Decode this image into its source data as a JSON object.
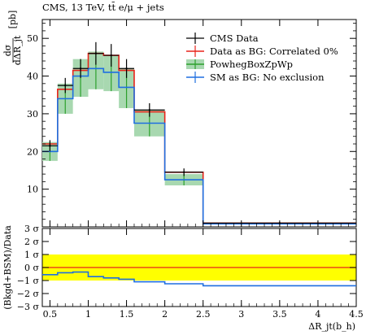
{
  "chart_data": [
    {
      "type": "line",
      "title": "CMS, 13 TeV, tt̄ e/μ + jets",
      "ylabel_num": "dσ",
      "ylabel_den": "dΔR_jt",
      "ylabel_unit": "[pb]",
      "xlabel": "ΔR_jt(b_h)",
      "xlim": [
        0.4,
        4.5
      ],
      "ylim": [
        0,
        55
      ],
      "yticks": [
        10,
        20,
        30,
        40,
        50
      ],
      "yticks_labels": [
        "10",
        "20",
        "30",
        "40",
        "50"
      ],
      "bin_edges": [
        0.4,
        0.6,
        0.8,
        1.0,
        1.2,
        1.4,
        1.6,
        2.0,
        2.5,
        4.5
      ],
      "legend_position": "top-right",
      "series": [
        {
          "name": "CMS Data",
          "style": "points",
          "color": "#000000",
          "x": [
            0.5,
            0.7,
            0.9,
            1.1,
            1.3,
            1.5,
            1.8,
            2.25,
            3.5
          ],
          "y": [
            21.5,
            37.5,
            42.0,
            46.0,
            45.5,
            42.0,
            31.0,
            14.5,
            1.0
          ],
          "yerr": [
            1.5,
            2.0,
            2.5,
            3.0,
            3.0,
            2.5,
            1.8,
            1.0,
            0.2
          ]
        },
        {
          "name": "Data as BG: Correlated 0%",
          "style": "step",
          "color": "#e8231a",
          "values": [
            22.0,
            36.5,
            41.5,
            46.0,
            45.5,
            41.5,
            30.5,
            14.5,
            1.0
          ]
        },
        {
          "name": "PowhegBoxZpWp",
          "style": "band",
          "color": "#2ca02c",
          "fill": "#a8d8b0",
          "values": [
            20.0,
            34.0,
            40.0,
            42.0,
            41.0,
            37.0,
            27.5,
            12.5,
            0.8
          ],
          "low": [
            17.5,
            30.0,
            34.5,
            36.5,
            36.0,
            31.5,
            24.0,
            11.0,
            0.7
          ],
          "high": [
            22.5,
            38.0,
            44.5,
            46.5,
            45.5,
            42.0,
            31.0,
            14.0,
            0.9
          ]
        },
        {
          "name": "SM as BG: No exclusion",
          "style": "step",
          "color": "#1f6fe0",
          "values": [
            20.0,
            34.0,
            40.0,
            42.0,
            41.0,
            37.0,
            27.5,
            12.5,
            0.8
          ]
        }
      ]
    },
    {
      "type": "line",
      "ylabel": "(Bkgd+BSM)/Data",
      "ylim": [
        -3,
        3
      ],
      "yticks": [
        -3,
        -2,
        -1,
        0,
        1,
        2,
        3
      ],
      "yticks_labels": [
        "−3 σ",
        "−2 σ",
        "−1 σ",
        "0 σ",
        "1 σ",
        "2 σ",
        "3 σ"
      ],
      "xticks": [
        0.5,
        1.0,
        1.5,
        2.0,
        2.5,
        3.0,
        3.5,
        4.0,
        4.5
      ],
      "xticks_labels": [
        "0.5",
        "1",
        "1.5",
        "2",
        "2.5",
        "3",
        "3.5",
        "4",
        "4.5"
      ],
      "band": {
        "low": -1,
        "high": 1,
        "color": "#ffff00"
      },
      "reference": {
        "y": 0,
        "color": "#e8231a"
      },
      "series": [
        {
          "name": "SM as BG: No exclusion",
          "style": "step",
          "color": "#1f6fe0",
          "values": [
            -0.55,
            -0.4,
            -0.35,
            -0.7,
            -0.8,
            -0.9,
            -1.1,
            -1.25,
            -1.4
          ]
        }
      ]
    }
  ]
}
